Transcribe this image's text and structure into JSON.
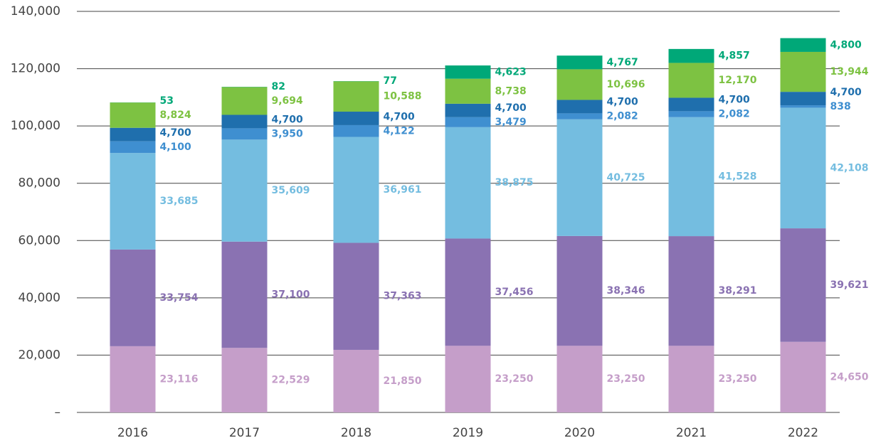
{
  "chart_data": {
    "type": "stacked_bar",
    "categories": [
      "2016",
      "2017",
      "2018",
      "2019",
      "2020",
      "2021",
      "2022"
    ],
    "series": [
      {
        "color": "#c59ec9",
        "values": [
          23116,
          22529,
          21850,
          23250,
          23250,
          23250,
          24650
        ],
        "value_labels": [
          "23,116",
          "22,529",
          "21,850",
          "23,250",
          "23,250",
          "23,250",
          "24,650"
        ]
      },
      {
        "color": "#8a72b2",
        "values": [
          33754,
          37100,
          37363,
          37456,
          38346,
          38291,
          39621
        ],
        "value_labels": [
          "33,754",
          "37,100",
          "37,363",
          "37,456",
          "38,346",
          "38,291",
          "39,621"
        ]
      },
      {
        "color": "#74bde0",
        "values": [
          33685,
          35609,
          36961,
          38875,
          40725,
          41528,
          42108
        ],
        "value_labels": [
          "33,685",
          "35,609",
          "36,961",
          "38,875",
          "40,725",
          "41,528",
          "42,108"
        ]
      },
      {
        "color": "#3f8fd0",
        "values": [
          4100,
          3950,
          4122,
          3479,
          2082,
          2082,
          838
        ],
        "value_labels": [
          "4,100",
          "3,950",
          "4,122",
          "3,479",
          "2,082",
          "2,082",
          "838"
        ]
      },
      {
        "color": "#1f6fad",
        "values": [
          4700,
          4700,
          4700,
          4700,
          4700,
          4700,
          4700
        ],
        "value_labels": [
          "4,700",
          "4,700",
          "4,700",
          "4,700",
          "4,700",
          "4,700",
          "4,700"
        ]
      },
      {
        "color": "#7dc242",
        "values": [
          8824,
          9694,
          10588,
          8738,
          10696,
          12170,
          13944
        ],
        "value_labels": [
          "8,824",
          "9,694",
          "10,588",
          "8,738",
          "10,696",
          "12,170",
          "13,944"
        ]
      },
      {
        "color": "#00a878",
        "values": [
          53,
          82,
          77,
          4623,
          4767,
          4857,
          4800
        ],
        "value_labels": [
          "53",
          "82",
          "77",
          "4,623",
          "4,767",
          "4,857",
          "4,800"
        ]
      }
    ],
    "ylim": [
      0,
      140000
    ],
    "yticks": [
      {
        "value": 0,
        "label": "–"
      },
      {
        "value": 20000,
        "label": "20,000"
      },
      {
        "value": 40000,
        "label": "40,000"
      },
      {
        "value": 60000,
        "label": "60,000"
      },
      {
        "value": 80000,
        "label": "80,000"
      },
      {
        "value": 100000,
        "label": "100,000"
      },
      {
        "value": 120000,
        "label": "120,000"
      },
      {
        "value": 140000,
        "label": "140,000"
      }
    ],
    "grid": true
  }
}
